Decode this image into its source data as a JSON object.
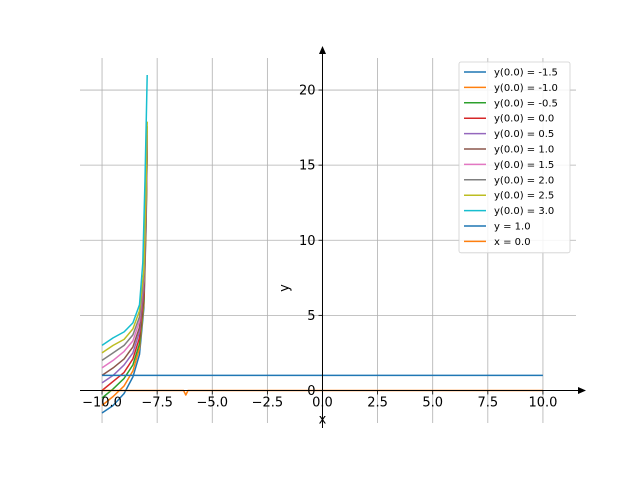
{
  "chart_data": {
    "type": "line",
    "xlabel": "x",
    "ylabel": "y",
    "xlim": [
      -11.0,
      11.5
    ],
    "ylim": [
      -2.5,
      22.8
    ],
    "xticks": [
      -10.0,
      -7.5,
      -5.0,
      -2.5,
      0.0,
      2.5,
      5.0,
      7.5,
      10.0
    ],
    "xtick_labels": [
      "−10.0",
      "−7.5",
      "−5.0",
      "−2.5",
      "0.0",
      "2.5",
      "5.0",
      "7.5",
      "10.0"
    ],
    "yticks": [
      0,
      5,
      10,
      15,
      20
    ],
    "ytick_labels": [
      "0",
      "5",
      "10",
      "15",
      "20"
    ],
    "grid": true,
    "legend_position": "top-right",
    "series": [
      {
        "name": "y(0.0) = -1.5",
        "color": "#1f77b4",
        "x": [
          -10.0,
          -9.5,
          -9.0,
          -8.6,
          -8.3,
          -8.1,
          -8.0,
          -7.95
        ],
        "y": [
          -1.5,
          -1.0,
          -0.2,
          0.9,
          2.4,
          5.5,
          11.0,
          16.0
        ]
      },
      {
        "name": "y(0.0) = -1.0",
        "color": "#ff7f0e",
        "x": [
          -10.0,
          -9.5,
          -9.0,
          -8.6,
          -8.3,
          -8.1,
          -8.0,
          -7.95
        ],
        "y": [
          -1.0,
          -0.4,
          0.3,
          1.3,
          2.8,
          5.8,
          11.3,
          16.2
        ]
      },
      {
        "name": "y(0.0) = -0.5",
        "color": "#2ca02c",
        "x": [
          -10.0,
          -9.5,
          -9.0,
          -8.6,
          -8.3,
          -8.1,
          -8.0,
          -7.95
        ],
        "y": [
          -0.5,
          0.1,
          0.8,
          1.7,
          3.1,
          6.1,
          11.6,
          16.4
        ]
      },
      {
        "name": "y(0.0) = 0.0",
        "color": "#d62728",
        "x": [
          -10.0,
          -9.5,
          -9.0,
          -8.6,
          -8.3,
          -8.1,
          -8.0,
          -7.95
        ],
        "y": [
          0.0,
          0.6,
          1.2,
          2.1,
          3.5,
          6.4,
          11.9,
          16.6
        ]
      },
      {
        "name": "y(0.0) = 0.5",
        "color": "#9467bd",
        "x": [
          -10.0,
          -9.5,
          -9.0,
          -8.6,
          -8.3,
          -8.1,
          -8.0,
          -7.95
        ],
        "y": [
          0.5,
          1.0,
          1.7,
          2.5,
          3.9,
          6.8,
          12.2,
          16.8
        ]
      },
      {
        "name": "y(0.0) = 1.0",
        "color": "#8c564b",
        "x": [
          -10.0,
          -9.5,
          -9.0,
          -8.6,
          -8.3,
          -8.1,
          -8.0,
          -7.95
        ],
        "y": [
          1.0,
          1.5,
          2.1,
          2.9,
          4.2,
          7.1,
          12.5,
          17.0
        ]
      },
      {
        "name": "y(0.0) = 1.5",
        "color": "#e377c2",
        "x": [
          -10.0,
          -9.5,
          -9.0,
          -8.6,
          -8.3,
          -8.1,
          -8.0,
          -7.95
        ],
        "y": [
          1.5,
          2.0,
          2.6,
          3.3,
          4.6,
          7.4,
          12.8,
          17.3
        ]
      },
      {
        "name": "y(0.0) = 2.0",
        "color": "#7f7f7f",
        "x": [
          -10.0,
          -9.5,
          -9.0,
          -8.6,
          -8.3,
          -8.1,
          -8.0,
          -7.95
        ],
        "y": [
          2.0,
          2.5,
          3.0,
          3.7,
          4.9,
          7.7,
          13.1,
          17.6
        ]
      },
      {
        "name": "y(0.0) = 2.5",
        "color": "#bcbd22",
        "x": [
          -10.0,
          -9.5,
          -9.0,
          -8.6,
          -8.3,
          -8.1,
          -8.0,
          -7.95
        ],
        "y": [
          2.5,
          3.0,
          3.4,
          4.1,
          5.3,
          8.0,
          13.4,
          17.9
        ]
      },
      {
        "name": "y(0.0) = 3.0",
        "color": "#17becf",
        "x": [
          -10.0,
          -9.5,
          -9.0,
          -8.6,
          -8.3,
          -8.15,
          -8.05,
          -7.95
        ],
        "y": [
          3.0,
          3.5,
          3.9,
          4.5,
          5.7,
          8.5,
          14.0,
          21.0
        ]
      },
      {
        "name": "y = 1.0",
        "color": "#1f77b4",
        "x": [
          -10.0,
          10.0
        ],
        "y": [
          1.0,
          1.0
        ]
      },
      {
        "name": "x = 0.0",
        "color": "#ff7f0e",
        "x": [
          -10.0,
          -6.3,
          -6.2,
          -6.1,
          10.0
        ],
        "y": [
          0.0,
          0.0,
          -0.3,
          0.0,
          0.0
        ]
      }
    ]
  }
}
